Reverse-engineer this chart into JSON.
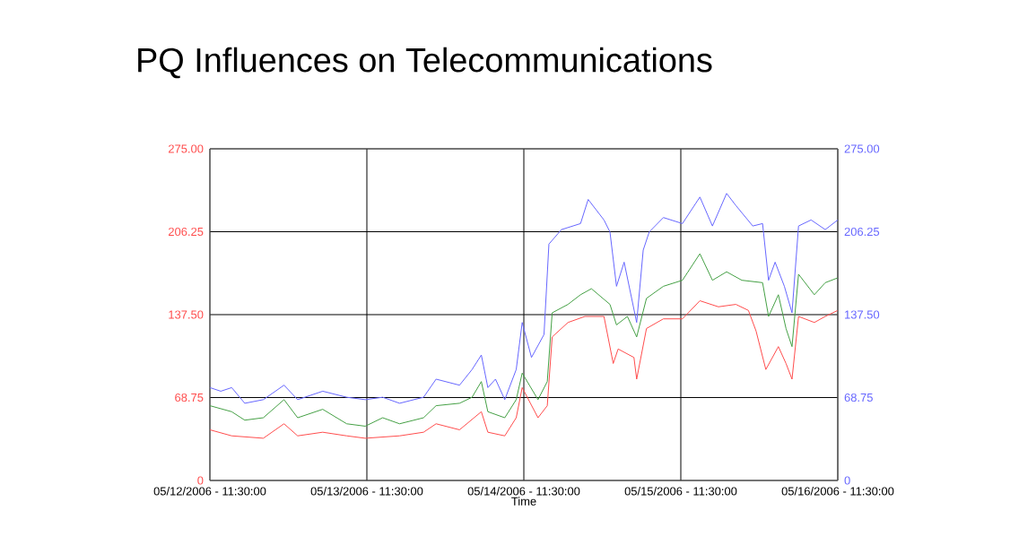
{
  "chart_data": {
    "type": "line",
    "title": "PQ Influences on Telecommunications",
    "xlabel": "Time",
    "xlim": [
      "2006-05-12T11:30",
      "2006-05-16T11:30"
    ],
    "xticks": [
      {
        "value": "2006-05-12T11:30",
        "label": "05/12/2006 - 11:30:00"
      },
      {
        "value": "2006-05-13T11:30",
        "label": "05/13/2006 - 11:30:00"
      },
      {
        "value": "2006-05-14T11:30",
        "label": "05/14/2006 - 11:30:00"
      },
      {
        "value": "2006-05-15T11:30",
        "label": "05/15/2006 - 11:30:00"
      },
      {
        "value": "2006-05-16T11:30",
        "label": "05/16/2006 - 11:30:00"
      }
    ],
    "ylim": [
      0,
      275
    ],
    "yticks": [
      {
        "value": 0,
        "label": "0"
      },
      {
        "value": 68.75,
        "label": "68.75"
      },
      {
        "value": 137.5,
        "label": "137.50"
      },
      {
        "value": 206.25,
        "label": "206.25"
      },
      {
        "value": 275,
        "label": "275.00"
      }
    ],
    "y2lim": [
      0,
      275
    ],
    "y2ticks": [
      {
        "value": 0,
        "label": "0"
      },
      {
        "value": 68.75,
        "label": "68.75"
      },
      {
        "value": 137.5,
        "label": "137.50"
      },
      {
        "value": 206.25,
        "label": "206.25"
      },
      {
        "value": 275,
        "label": "275.00"
      }
    ],
    "grid": true,
    "marker": "none",
    "line_style": "solid",
    "series": [
      {
        "color": "#6666ff",
        "axis": "y2",
        "x": [
          "2006-05-12T11:30",
          "2006-05-12T13:10",
          "2006-05-12T14:50",
          "2006-05-12T16:50",
          "2006-05-12T19:40",
          "2006-05-12T22:50",
          "2006-05-13T00:55",
          "2006-05-13T04:45",
          "2006-05-13T08:25",
          "2006-05-13T11:15",
          "2006-05-13T13:55",
          "2006-05-13T16:30",
          "2006-05-13T20:10",
          "2006-05-13T22:05",
          "2006-05-14T01:40",
          "2006-05-14T03:35",
          "2006-05-14T05:00",
          "2006-05-14T06:00",
          "2006-05-14T07:10",
          "2006-05-14T08:35",
          "2006-05-14T10:20",
          "2006-05-14T11:15",
          "2006-05-14T12:40",
          "2006-05-14T14:35",
          "2006-05-14T15:20",
          "2006-05-14T17:15",
          "2006-05-14T20:10",
          "2006-05-14T21:20",
          "2006-05-14T23:45",
          "2006-05-15T00:40",
          "2006-05-15T01:40",
          "2006-05-15T02:50",
          "2006-05-15T04:45",
          "2006-05-15T05:45",
          "2006-05-15T06:40",
          "2006-05-15T08:50",
          "2006-05-15T11:45",
          "2006-05-15T14:25",
          "2006-05-15T16:20",
          "2006-05-15T18:30",
          "2006-05-15T19:55",
          "2006-05-15T22:30",
          "2006-05-16T00:00",
          "2006-05-16T00:55",
          "2006-05-16T01:55",
          "2006-05-16T03:20",
          "2006-05-16T04:30",
          "2006-05-16T05:30",
          "2006-05-16T07:25",
          "2006-05-16T09:35",
          "2006-05-16T11:30"
        ],
        "values": [
          77,
          74,
          77,
          64,
          67,
          79,
          67,
          74,
          69,
          67,
          69,
          64,
          69,
          84,
          79,
          92,
          104,
          77,
          84,
          67,
          92,
          131,
          102,
          121,
          196,
          208,
          213,
          233,
          216,
          206,
          161,
          181,
          131,
          191,
          206,
          218,
          213,
          235,
          211,
          238,
          228,
          211,
          213,
          166,
          181,
          161,
          139,
          211,
          216,
          208,
          216
        ]
      },
      {
        "color": "#44a044",
        "x": [
          "2006-05-12T11:30",
          "2006-05-12T14:50",
          "2006-05-12T16:50",
          "2006-05-12T19:40",
          "2006-05-12T22:50",
          "2006-05-13T00:55",
          "2006-05-13T04:45",
          "2006-05-13T08:25",
          "2006-05-13T11:15",
          "2006-05-13T13:55",
          "2006-05-13T16:30",
          "2006-05-13T20:10",
          "2006-05-13T22:05",
          "2006-05-14T01:40",
          "2006-05-14T03:35",
          "2006-05-14T05:00",
          "2006-05-14T06:00",
          "2006-05-14T08:35",
          "2006-05-14T10:20",
          "2006-05-14T11:15",
          "2006-05-14T13:40",
          "2006-05-14T15:05",
          "2006-05-14T15:50",
          "2006-05-14T18:15",
          "2006-05-14T20:10",
          "2006-05-14T21:50",
          "2006-05-15T00:40",
          "2006-05-15T01:40",
          "2006-05-15T03:20",
          "2006-05-15T04:45",
          "2006-05-15T06:15",
          "2006-05-15T08:50",
          "2006-05-15T11:45",
          "2006-05-15T14:25",
          "2006-05-15T16:20",
          "2006-05-15T18:30",
          "2006-05-15T20:50",
          "2006-05-16T00:00",
          "2006-05-16T00:55",
          "2006-05-16T02:25",
          "2006-05-16T03:35",
          "2006-05-16T04:30",
          "2006-05-16T05:30",
          "2006-05-16T07:55",
          "2006-05-16T09:35",
          "2006-05-16T11:30"
        ],
        "values": [
          62,
          57,
          50,
          52,
          67,
          52,
          59,
          47,
          45,
          52,
          47,
          52,
          62,
          64,
          69,
          82,
          57,
          52,
          67,
          89,
          67,
          82,
          139,
          146,
          154,
          159,
          146,
          129,
          136,
          119,
          151,
          161,
          166,
          188,
          166,
          173,
          166,
          164,
          136,
          154,
          126,
          111,
          171,
          154,
          164,
          168
        ]
      },
      {
        "color": "#ff4c4c",
        "x": [
          "2006-05-12T11:30",
          "2006-05-12T14:50",
          "2006-05-12T19:40",
          "2006-05-12T22:50",
          "2006-05-13T00:55",
          "2006-05-13T04:45",
          "2006-05-13T08:25",
          "2006-05-13T11:15",
          "2006-05-13T16:30",
          "2006-05-13T20:10",
          "2006-05-13T22:05",
          "2006-05-14T01:40",
          "2006-05-14T05:00",
          "2006-05-14T06:00",
          "2006-05-14T08:35",
          "2006-05-14T10:20",
          "2006-05-14T11:15",
          "2006-05-14T13:40",
          "2006-05-14T15:05",
          "2006-05-14T15:50",
          "2006-05-14T18:15",
          "2006-05-14T20:50",
          "2006-05-14T23:45",
          "2006-05-15T01:10",
          "2006-05-15T01:55",
          "2006-05-15T04:20",
          "2006-05-15T04:45",
          "2006-05-15T06:15",
          "2006-05-15T08:50",
          "2006-05-15T11:45",
          "2006-05-15T14:25",
          "2006-05-15T17:15",
          "2006-05-15T19:55",
          "2006-05-15T21:50",
          "2006-05-15T23:00",
          "2006-05-16T00:30",
          "2006-05-16T02:25",
          "2006-05-16T03:35",
          "2006-05-16T04:30",
          "2006-05-16T05:30",
          "2006-05-16T07:55",
          "2006-05-16T09:35",
          "2006-05-16T11:30"
        ],
        "values": [
          42,
          37,
          35,
          47,
          37,
          40,
          37,
          35,
          37,
          40,
          47,
          42,
          57,
          40,
          37,
          52,
          77,
          52,
          62,
          119,
          131,
          136,
          136,
          97,
          109,
          102,
          84,
          126,
          134,
          134,
          149,
          144,
          146,
          141,
          124,
          92,
          111,
          97,
          84,
          136,
          131,
          136,
          141
        ]
      }
    ]
  }
}
